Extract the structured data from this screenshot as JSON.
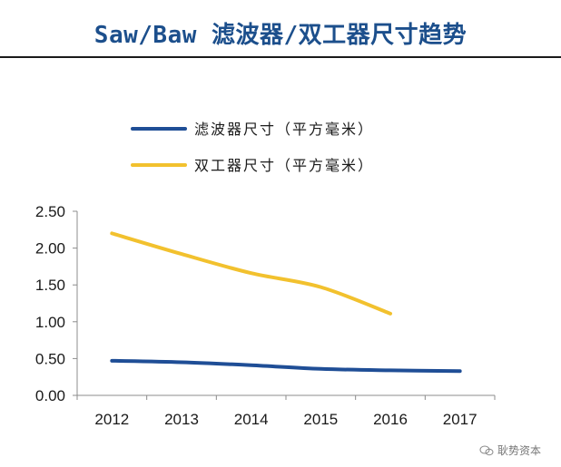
{
  "title": "Saw/Baw 滤波器/双工器尺寸趋势",
  "watermark": "耿势资本",
  "colors": {
    "series1": "#1f4e96",
    "series2": "#f2c12e",
    "axis": "#8c8c8c",
    "title": "#1c4f8c"
  },
  "chart_data": {
    "type": "line",
    "title": "Saw/Baw 滤波器/双工器尺寸趋势",
    "xlabel": "",
    "ylabel": "",
    "categories": [
      "2012",
      "2013",
      "2014",
      "2015",
      "2016",
      "2017"
    ],
    "ylim": [
      0,
      2.5
    ],
    "yticks": [
      "0.00",
      "0.50",
      "1.00",
      "1.50",
      "2.00",
      "2.50"
    ],
    "grid": false,
    "legend_position": "top",
    "series": [
      {
        "name": "滤波器尺寸（平方毫米）",
        "x": [
          2012,
          2013,
          2014,
          2015,
          2016,
          2017
        ],
        "values": [
          0.47,
          0.45,
          0.41,
          0.36,
          0.34,
          0.33
        ]
      },
      {
        "name": "双工器尺寸（平方毫米）",
        "x": [
          2012,
          2013,
          2014,
          2015,
          2016
        ],
        "values": [
          2.2,
          1.92,
          1.66,
          1.47,
          1.11
        ]
      }
    ]
  }
}
